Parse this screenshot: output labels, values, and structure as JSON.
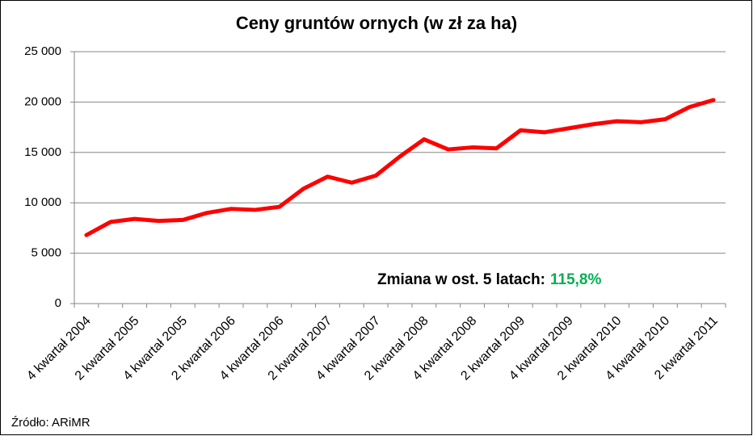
{
  "chart_data": {
    "type": "line",
    "title": "Ceny gruntów ornych (w zł za ha)",
    "categories": [
      "4 kwartał 2004",
      null,
      "2 kwartał 2005",
      null,
      "4 kwartał 2005",
      null,
      "2 kwartał 2006",
      null,
      "4 kwartał 2006",
      null,
      "2 kwartał 2007",
      null,
      "4 kwartał 2007",
      null,
      "2 kwartał 2008",
      null,
      "4 kwartał 2008",
      null,
      "2 kwartał 2009",
      null,
      "4 kwartał 2009",
      null,
      "2 kwartał 2010",
      null,
      "4 kwartał 2010",
      null,
      "2 kwartał 2011"
    ],
    "series": [
      {
        "name": "Ceny gruntów ornych",
        "color": "#ff0000",
        "values": [
          6800,
          8100,
          8400,
          8200,
          8300,
          9000,
          9400,
          9300,
          9600,
          11400,
          12600,
          12000,
          12700,
          14600,
          16300,
          15300,
          15500,
          15400,
          17200,
          17000,
          17400,
          17800,
          18100,
          18000,
          18300,
          19500,
          20200
        ]
      }
    ],
    "ylim": [
      0,
      25000
    ],
    "yticks": [
      0,
      {
        "value": 5000,
        "label": "5 000"
      },
      {
        "value": 10000,
        "label": "10 000"
      },
      {
        "value": 15000,
        "label": "15 000"
      },
      {
        "value": 20000,
        "label": "20 000"
      },
      {
        "value": 25000,
        "label": "25 000"
      }
    ],
    "grid": true,
    "annotation": {
      "text": "Zmiana w ost.  5 latach:",
      "highlight": "115,8%",
      "highlight_color": "#00b050"
    },
    "source": "Źródło: ARiMR"
  }
}
